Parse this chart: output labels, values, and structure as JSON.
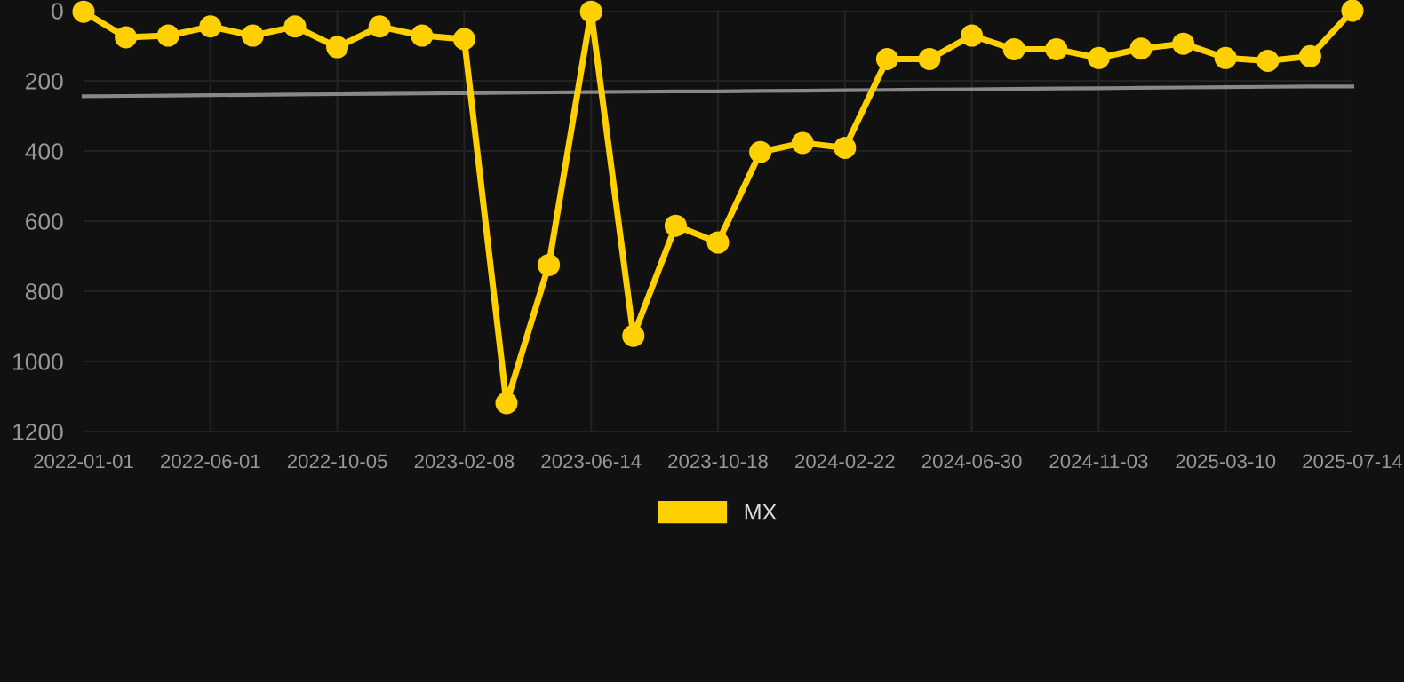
{
  "chart_data": {
    "type": "line",
    "categories": [
      "2022-01-01",
      null,
      null,
      "2022-06-01",
      null,
      null,
      "2022-10-05",
      null,
      null,
      "2023-02-08",
      null,
      null,
      "2023-06-14",
      null,
      null,
      "2023-10-18",
      null,
      null,
      "2024-02-22",
      null,
      null,
      "2024-06-30",
      null,
      null,
      "2024-11-03",
      null,
      null,
      "2025-03-10",
      null,
      null,
      "2025-07-14"
    ],
    "series": [
      {
        "name": "MX",
        "color": "#ffd000",
        "marker": "circle",
        "values": [
          3,
          76,
          71,
          45,
          71,
          45,
          104,
          45,
          71,
          81,
          1119,
          725,
          3,
          927,
          613,
          661,
          403,
          377,
          391,
          138,
          138,
          71,
          110,
          110,
          135,
          108,
          94,
          135,
          143,
          130,
          0
        ]
      },
      {
        "color": "#888888",
        "marker": "none",
        "values": [
          244,
          243,
          242,
          241,
          240,
          239,
          238,
          237,
          236,
          235,
          234,
          233,
          232,
          231,
          230,
          230,
          229,
          228,
          227,
          226,
          225,
          224,
          223,
          222,
          221,
          220,
          219,
          218,
          217,
          216,
          216
        ]
      }
    ],
    "ylim": [
      1200,
      0
    ],
    "yticks": [
      0,
      200,
      400,
      600,
      800,
      1000,
      1200
    ],
    "grid": true,
    "legend": "bottom"
  }
}
